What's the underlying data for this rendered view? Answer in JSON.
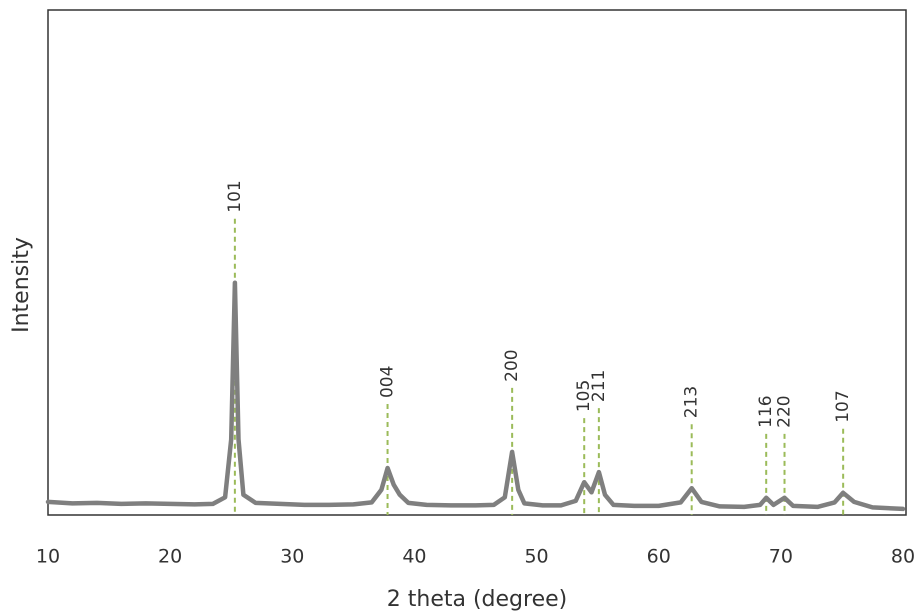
{
  "chart_data": {
    "type": "line",
    "x_label": "2 theta (degree)",
    "y_label": "Intensity",
    "xlim": [
      10,
      80
    ],
    "xticks": [
      10,
      20,
      30,
      40,
      50,
      60,
      70,
      80
    ],
    "ylim": [
      0,
      100
    ],
    "series": [
      {
        "color": "#7f7f7f",
        "x": [
          10,
          12,
          14,
          16,
          18,
          20,
          22,
          23.5,
          24.5,
          25.0,
          25.3,
          25.6,
          26.0,
          27,
          29,
          31,
          33,
          35,
          36.5,
          37.3,
          37.8,
          38.3,
          38.8,
          39.5,
          41,
          43,
          45,
          46.5,
          47.4,
          48.0,
          48.5,
          49.0,
          50.5,
          52,
          53.2,
          53.9,
          54.5,
          55.1,
          55.6,
          56.3,
          58,
          60,
          61.8,
          62.7,
          63.5,
          65,
          67,
          68.3,
          68.8,
          69.4,
          70.3,
          71,
          73,
          74.4,
          75.1,
          76,
          77.5,
          80
        ],
        "values": [
          2.6,
          2.3,
          2.4,
          2.2,
          2.3,
          2.2,
          2.1,
          2.2,
          3.5,
          15,
          46,
          15,
          4,
          2.4,
          2.2,
          2.0,
          2.0,
          2.1,
          2.5,
          5,
          9.3,
          6,
          4,
          2.4,
          2.0,
          1.9,
          1.9,
          2.0,
          3.5,
          12.5,
          5,
          2.3,
          1.9,
          1.9,
          2.8,
          6.5,
          4.5,
          8.5,
          4,
          2.0,
          1.8,
          1.8,
          2.5,
          5.3,
          2.6,
          1.7,
          1.6,
          2.0,
          3.4,
          2.0,
          3.4,
          1.8,
          1.6,
          2.5,
          4.4,
          2.6,
          1.5,
          1.2
        ]
      }
    ],
    "annotation_color": "#9bbb59",
    "annotations": [
      {
        "label": "101",
        "x": 25.3
      },
      {
        "label": "004",
        "x": 37.8
      },
      {
        "label": "200",
        "x": 48.0
      },
      {
        "label": "105",
        "x": 53.9
      },
      {
        "label": "211",
        "x": 55.1
      },
      {
        "label": "213",
        "x": 62.7
      },
      {
        "label": "116",
        "x": 68.8
      },
      {
        "label": "220",
        "x": 70.3
      },
      {
        "label": "107",
        "x": 75.1
      }
    ]
  }
}
